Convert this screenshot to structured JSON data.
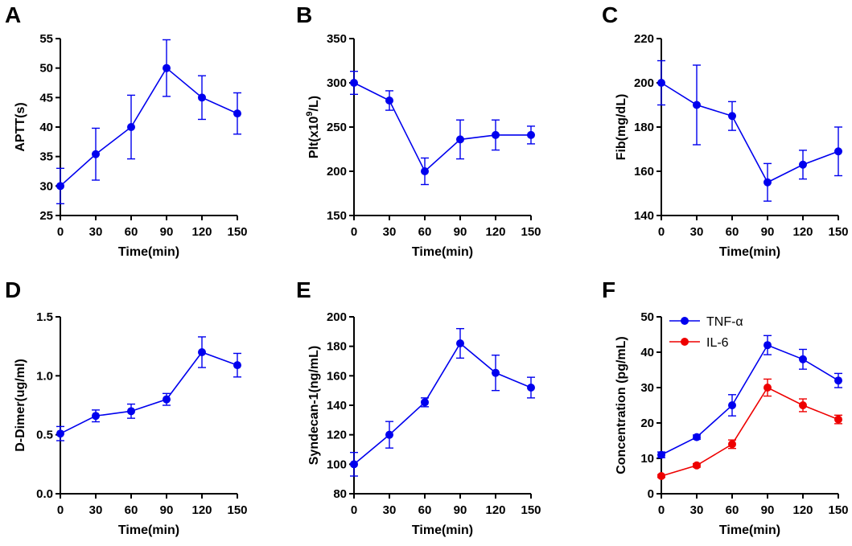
{
  "chart_data": [
    {
      "panel": "A",
      "type": "line",
      "xlabel": "Time(min)",
      "ylabel": "APTT(s)",
      "ylim": [
        25,
        55
      ],
      "yticks": [
        "25",
        "30",
        "35",
        "40",
        "45",
        "50",
        "55"
      ],
      "xticks": [
        "0",
        "30",
        "60",
        "90",
        "120",
        "150"
      ],
      "x": [
        0,
        30,
        60,
        90,
        120,
        150
      ],
      "series": [
        {
          "name": "APTT",
          "color": "#0000ee",
          "values": [
            30,
            35.4,
            40,
            50,
            45,
            42.3
          ],
          "err": [
            3,
            4.4,
            5.4,
            4.8,
            3.7,
            3.5
          ]
        }
      ]
    },
    {
      "panel": "B",
      "type": "line",
      "xlabel": "Time(min)",
      "ylabel": "Plt(x10",
      "ylabel_sup": "9",
      "ylabel_end": "/L)",
      "ylim": [
        150,
        350
      ],
      "yticks": [
        "150",
        "200",
        "250",
        "300",
        "350"
      ],
      "xticks": [
        "0",
        "30",
        "60",
        "90",
        "120",
        "150"
      ],
      "x": [
        0,
        30,
        60,
        90,
        120,
        150
      ],
      "series": [
        {
          "name": "Plt",
          "color": "#0000ee",
          "values": [
            300,
            280,
            200,
            236,
            241,
            241
          ],
          "err": [
            13,
            11,
            15,
            22,
            17,
            10
          ]
        }
      ]
    },
    {
      "panel": "C",
      "type": "line",
      "xlabel": "Time(min)",
      "ylabel": "Fib(mg/dL)",
      "ylim": [
        140,
        220
      ],
      "yticks": [
        "140",
        "160",
        "180",
        "200",
        "220"
      ],
      "xticks": [
        "0",
        "30",
        "60",
        "90",
        "120",
        "150"
      ],
      "x": [
        0,
        30,
        60,
        90,
        120,
        150
      ],
      "series": [
        {
          "name": "Fib",
          "color": "#0000ee",
          "values": [
            200,
            190,
            185,
            155,
            163,
            169
          ],
          "err": [
            10,
            18,
            6.5,
            8.5,
            6.5,
            11
          ]
        }
      ]
    },
    {
      "panel": "D",
      "type": "line",
      "xlabel": "Time(min)",
      "ylabel": "D-Dimer(ug/ml)",
      "ylim": [
        0,
        1.5
      ],
      "yticks": [
        "0.0",
        "0.5",
        "1.0",
        "1.5"
      ],
      "xticks": [
        "0",
        "30",
        "60",
        "90",
        "120",
        "150"
      ],
      "x": [
        0,
        30,
        60,
        90,
        120,
        150
      ],
      "series": [
        {
          "name": "D-Dimer",
          "color": "#0000ee",
          "values": [
            0.51,
            0.66,
            0.7,
            0.8,
            1.2,
            1.09
          ],
          "err": [
            0.06,
            0.05,
            0.06,
            0.05,
            0.13,
            0.1
          ]
        }
      ]
    },
    {
      "panel": "E",
      "type": "line",
      "xlabel": "Time(min)",
      "ylabel": "Syndecan-1(ng/mL)",
      "ylim": [
        80,
        200
      ],
      "yticks": [
        "80",
        "100",
        "120",
        "140",
        "160",
        "180",
        "200"
      ],
      "xticks": [
        "0",
        "30",
        "60",
        "90",
        "120",
        "150"
      ],
      "x": [
        0,
        30,
        60,
        90,
        120,
        150
      ],
      "series": [
        {
          "name": "Syndecan-1",
          "color": "#0000ee",
          "values": [
            100,
            120,
            142,
            182,
            162,
            152
          ],
          "err": [
            8,
            9,
            3,
            10,
            12,
            7
          ]
        }
      ]
    },
    {
      "panel": "F",
      "type": "line",
      "xlabel": "Time(min)",
      "ylabel": "Concentration (pg/mL)",
      "ylim": [
        0,
        50
      ],
      "yticks": [
        "0",
        "10",
        "20",
        "30",
        "40",
        "50"
      ],
      "xticks": [
        "0",
        "30",
        "60",
        "90",
        "120",
        "150"
      ],
      "x": [
        0,
        30,
        60,
        90,
        120,
        150
      ],
      "legend": "top-left",
      "series": [
        {
          "name": "TNF-α",
          "color": "#0000ee",
          "values": [
            11,
            16,
            25,
            42,
            38,
            32
          ],
          "err": [
            0.8,
            0.6,
            3,
            2.7,
            2.8,
            2
          ]
        },
        {
          "name": "IL-6",
          "color": "#ee0000",
          "values": [
            5,
            8,
            14,
            30,
            25,
            21
          ],
          "err": [
            0.4,
            0.5,
            1.2,
            2.4,
            1.8,
            1.2
          ]
        }
      ]
    }
  ]
}
